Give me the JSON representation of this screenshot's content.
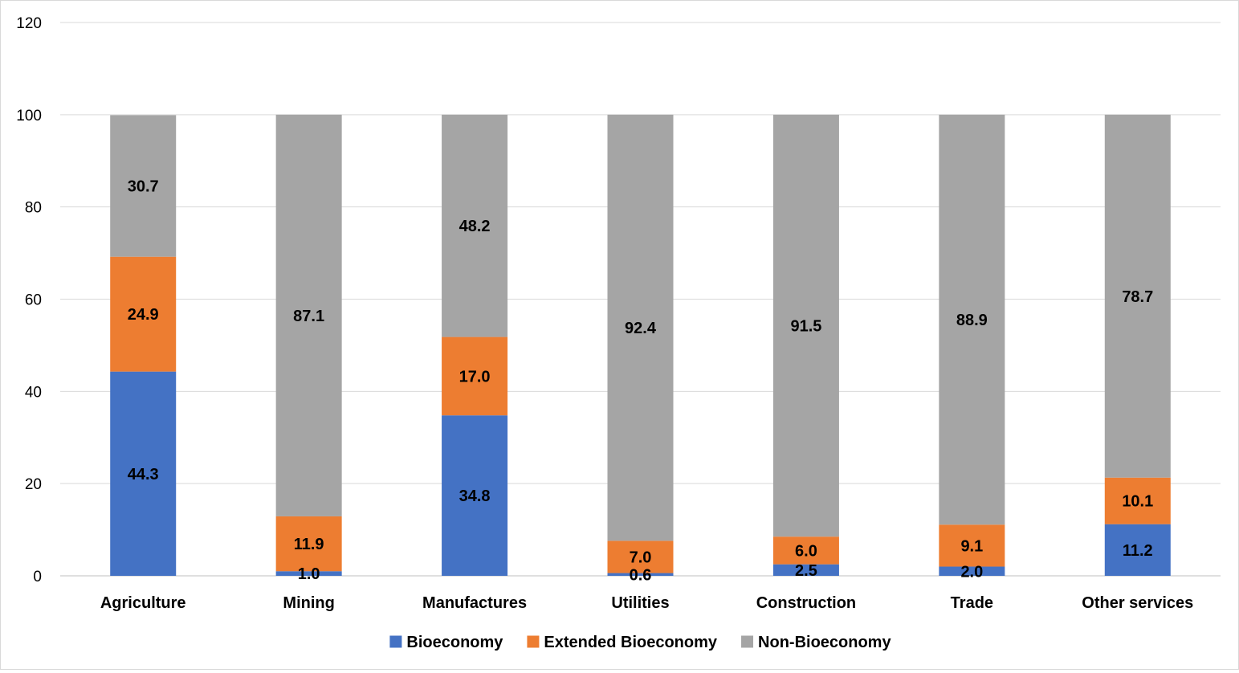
{
  "chart_data": {
    "type": "bar",
    "stacked": true,
    "title": "",
    "xlabel": "",
    "ylabel": "",
    "ylim": [
      0,
      120
    ],
    "yticks": [
      0,
      20,
      40,
      60,
      80,
      100,
      120
    ],
    "grid": true,
    "legend_position": "bottom",
    "categories": [
      "Agriculture",
      "Mining",
      "Manufactures",
      "Utilities",
      "Construction",
      "Trade",
      "Other services"
    ],
    "series": [
      {
        "name": "Bioeconomy",
        "color": "#4472c4",
        "values": [
          44.3,
          1.0,
          34.8,
          0.6,
          2.5,
          2.0,
          11.2
        ]
      },
      {
        "name": "Extended Bioeconomy",
        "color": "#ed7d31",
        "values": [
          24.9,
          11.9,
          17.0,
          7.0,
          6.0,
          9.1,
          10.1
        ]
      },
      {
        "name": "Non-Bioeconomy",
        "color": "#a5a5a5",
        "values": [
          30.7,
          87.1,
          48.2,
          92.4,
          91.5,
          88.9,
          78.7
        ]
      }
    ]
  }
}
